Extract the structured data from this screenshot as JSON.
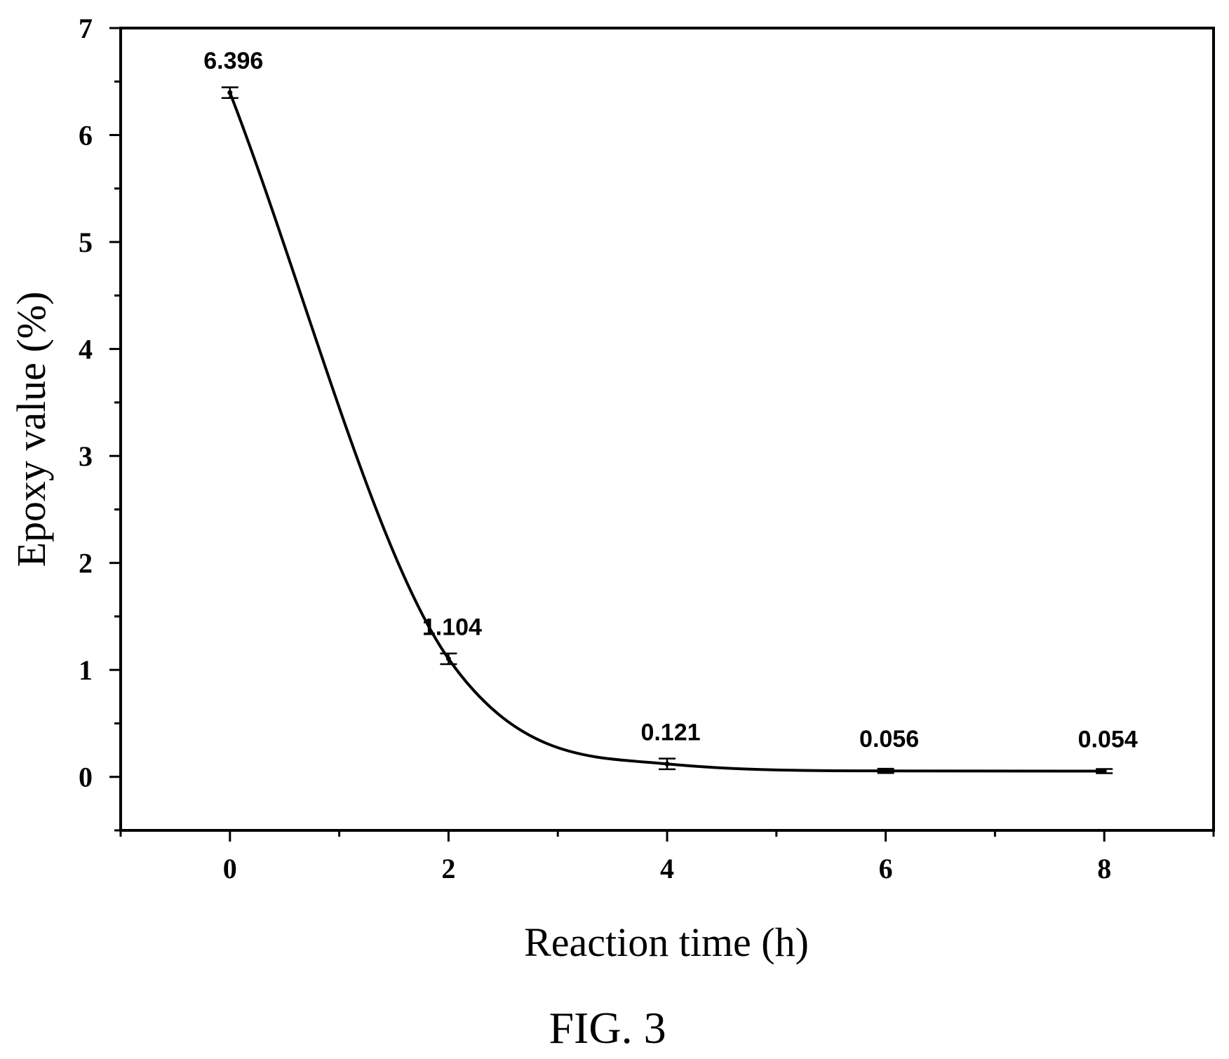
{
  "chart_data": {
    "type": "line",
    "title": "",
    "xlabel": "Reaction time (h)",
    "ylabel": "Epoxy value (%)",
    "xlim": [
      -1,
      9
    ],
    "ylim": [
      -0.5,
      7
    ],
    "x_ticks": [
      0,
      2,
      4,
      6,
      8
    ],
    "y_ticks": [
      0,
      1,
      2,
      3,
      4,
      5,
      6,
      7
    ],
    "grid": false,
    "legend": "none",
    "series": [
      {
        "x": [
          0,
          2,
          4,
          6,
          8
        ],
        "y": [
          6.396,
          1.104,
          0.121,
          0.056,
          0.054
        ],
        "error": [
          0.05,
          0.05,
          0.05,
          0.02,
          0.02
        ],
        "labels": [
          "6.396",
          "1.104",
          "0.121",
          "0.056",
          "0.054"
        ],
        "color": "#000000"
      }
    ]
  },
  "caption": "FIG. 3"
}
